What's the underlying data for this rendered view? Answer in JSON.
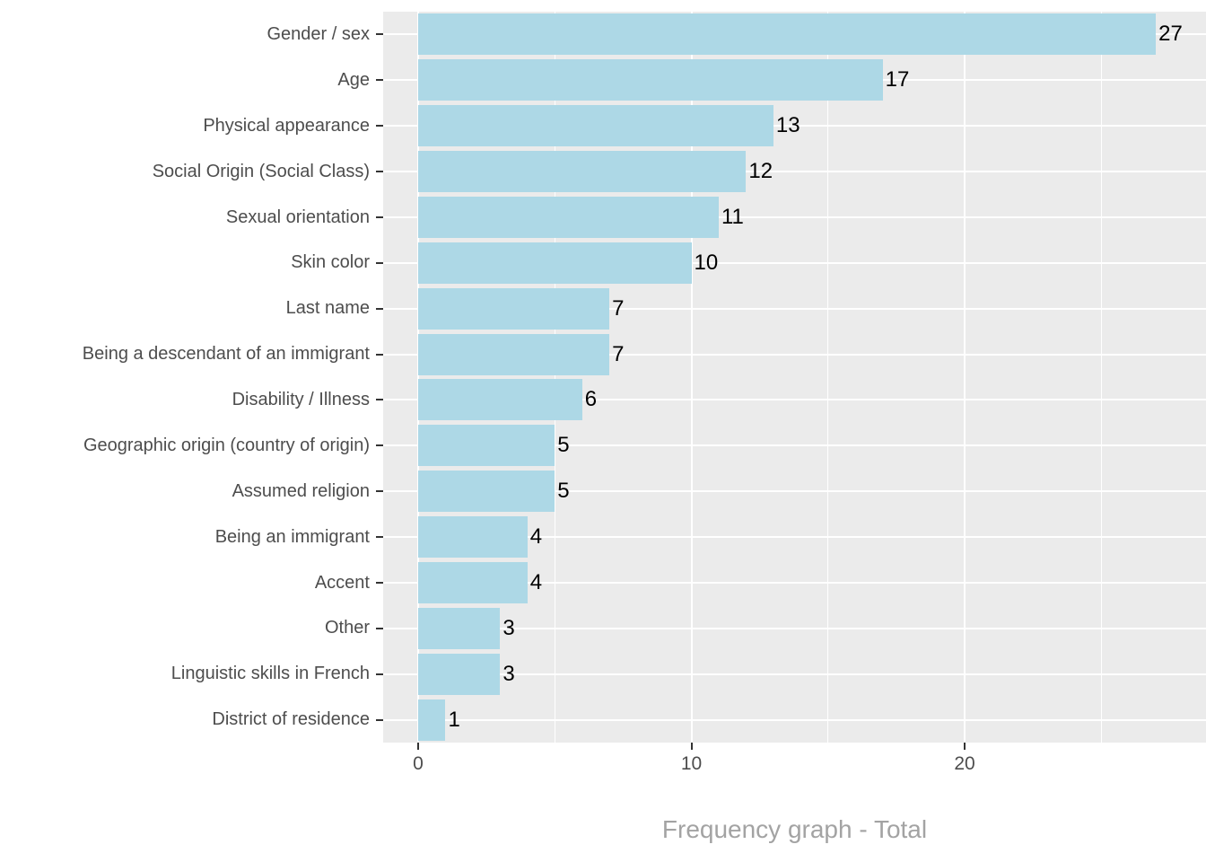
{
  "chart_data": {
    "type": "bar",
    "orientation": "horizontal",
    "title": "",
    "xlabel": "Frequency graph - Total",
    "ylabel": "",
    "categories": [
      "Gender / sex",
      "Age",
      "Physical appearance",
      "Social Origin (Social Class)",
      "Sexual orientation",
      "Skin color",
      "Last name",
      "Being a descendant of an immigrant",
      "Disability / Illness",
      "Geographic origin (country of origin)",
      "Assumed religion",
      "Being an immigrant",
      "Accent",
      "Other",
      "Linguistic skills in French",
      "District of residence"
    ],
    "values": [
      27,
      17,
      13,
      12,
      11,
      10,
      7,
      7,
      6,
      5,
      5,
      4,
      4,
      3,
      3,
      1
    ],
    "value_labels": [
      "27",
      "17",
      "13",
      "12",
      "11",
      "10",
      "7",
      "7",
      "6",
      "5",
      "5",
      "4",
      "4",
      "3",
      "3",
      "1"
    ],
    "x_ticks": [
      0,
      10,
      20
    ],
    "x_tick_labels": [
      "0",
      "10",
      "20"
    ],
    "x_minor_ticks": [
      5,
      15,
      25
    ],
    "xlim": [
      -1.3,
      28.8
    ],
    "grid": "on",
    "legend": "none",
    "colors": {
      "bar_fill": "#ADD8E6",
      "panel_background": "#EBEBEB",
      "gridline": "#FFFFFF",
      "axis_text": "#4D4D4D",
      "tick_mark": "#333333",
      "value_label": "#000000",
      "axis_title": "#A3A3A3"
    }
  }
}
